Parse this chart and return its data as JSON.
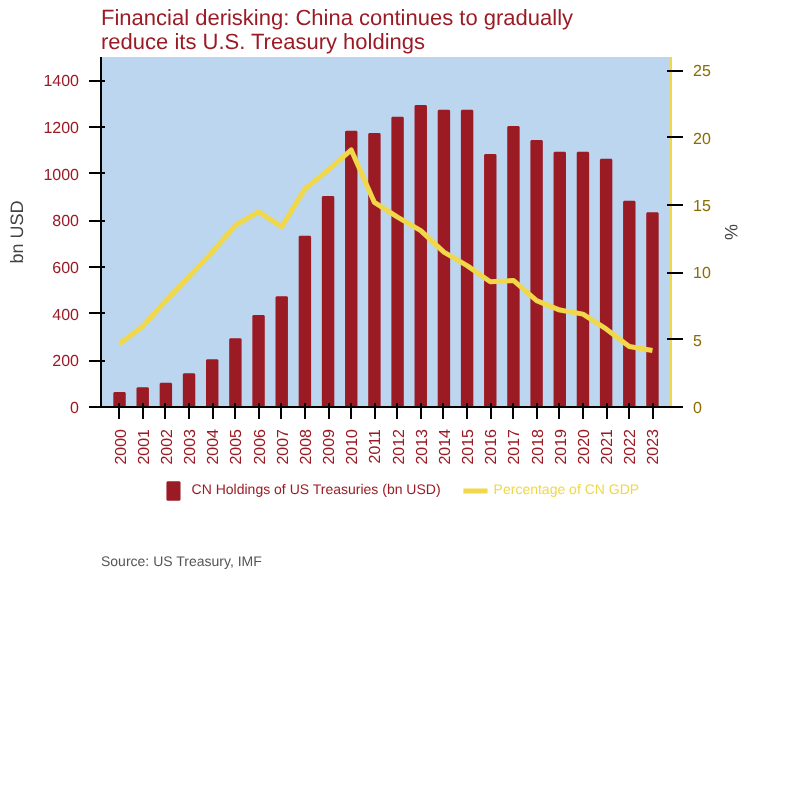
{
  "chart_data": {
    "type": "bar",
    "title": "Financial derisking: China continues to gradually reduce its U.S. Treasury holdings",
    "ylabel": "bn USD",
    "y2label": "%",
    "categories": [
      "2000",
      "2001",
      "2002",
      "2003",
      "2004",
      "2005",
      "2006",
      "2007",
      "2008",
      "2009",
      "2010",
      "2011",
      "2012",
      "2013",
      "2014",
      "2015",
      "2016",
      "2017",
      "2018",
      "2019",
      "2020",
      "2021",
      "2022",
      "2023"
    ],
    "series": [
      {
        "name": "CN Holdings of US Treasuries (bn USD)",
        "color": "#9b1b25",
        "values": [
          60,
          80,
          100,
          140,
          200,
          290,
          390,
          470,
          730,
          900,
          1180,
          1170,
          1240,
          1290,
          1270,
          1270,
          1080,
          1200,
          1140,
          1090,
          1090,
          1060,
          880,
          830
        ]
      },
      {
        "name": "Percentage of CN GDP",
        "type": "line",
        "axis": "y2",
        "color": "#f0d84a",
        "values": [
          4.7,
          6.0,
          7.9,
          9.7,
          11.5,
          13.5,
          14.5,
          13.4,
          16.2,
          17.6,
          19.1,
          15.2,
          14.1,
          13.1,
          11.5,
          10.5,
          9.3,
          9.4,
          7.9,
          7.2,
          6.9,
          5.8,
          4.5,
          4.2
        ]
      }
    ],
    "ylim": [
      0,
      1500
    ],
    "yticks": [
      0,
      200,
      400,
      600,
      800,
      1000,
      1200,
      1400
    ],
    "y2lim": [
      0,
      26
    ],
    "y2ticks": [
      0,
      5,
      10,
      15,
      20,
      25
    ],
    "grid": false,
    "legend": "bottom",
    "annotations": [
      "Source: US Treasury, IMF"
    ]
  }
}
